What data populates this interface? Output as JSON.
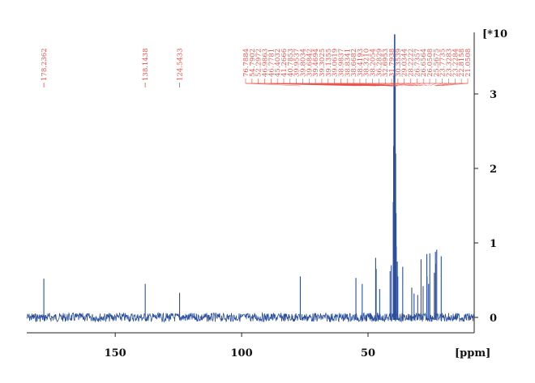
{
  "chart_data": {
    "type": "line",
    "x_unit_label": "[ppm]",
    "y_unit_label": "[*10",
    "x_ticks": [
      150,
      100,
      50
    ],
    "y_ticks": [
      0,
      1,
      2,
      3
    ],
    "x_range": [
      185.0,
      8.0
    ],
    "y_range": [
      -0.18,
      3.85
    ],
    "x_reversed": true,
    "grid": false,
    "colors": {
      "trace": "#2c4f9e",
      "labels": "#e8504a",
      "axis": "#222222"
    },
    "peak_labels_left": [
      {
        "text": "178.2362",
        "ppm": 178.2362
      },
      {
        "text": "138.1438",
        "ppm": 138.1438
      },
      {
        "text": "124.5433",
        "ppm": 124.5433
      }
    ],
    "peak_labels_cluster": [
      "76.7884",
      "54.7902",
      "52.2972",
      "46.9863",
      "46.7781",
      "45.4032",
      "41.2666",
      "40.7853",
      "39.9537",
      "39.8034",
      "39.6842",
      "39.4694",
      "39.3025",
      "39.1355",
      "39.0619",
      "38.9837",
      "38.8341",
      "38.6682",
      "38.4193",
      "38.3210",
      "38.2054",
      "36.2829",
      "32.6953",
      "31.7938",
      "30.3539",
      "29.0344",
      "28.2222",
      "26.7357",
      "26.6564",
      "26.0508",
      "25.5675",
      "23.7735",
      "23.3283",
      "23.2284",
      "22.8158",
      "21.0508"
    ],
    "peaks": [
      {
        "ppm": 178.24,
        "height": 0.52
      },
      {
        "ppm": 138.14,
        "height": 0.45
      },
      {
        "ppm": 124.54,
        "height": 0.33
      },
      {
        "ppm": 76.79,
        "height": 0.55
      },
      {
        "ppm": 54.79,
        "height": 0.53
      },
      {
        "ppm": 52.3,
        "height": 0.45
      },
      {
        "ppm": 46.99,
        "height": 0.8
      },
      {
        "ppm": 46.78,
        "height": 0.65
      },
      {
        "ppm": 45.4,
        "height": 0.38
      },
      {
        "ppm": 41.27,
        "height": 0.62
      },
      {
        "ppm": 40.79,
        "height": 0.7
      },
      {
        "ppm": 39.95,
        "height": 1.55
      },
      {
        "ppm": 39.8,
        "height": 2.3
      },
      {
        "ppm": 39.68,
        "height": 3.25
      },
      {
        "ppm": 39.47,
        "height": 3.8
      },
      {
        "ppm": 39.3,
        "height": 3.1
      },
      {
        "ppm": 39.14,
        "height": 2.2
      },
      {
        "ppm": 38.98,
        "height": 1.4
      },
      {
        "ppm": 38.83,
        "height": 0.95
      },
      {
        "ppm": 38.42,
        "height": 0.75
      },
      {
        "ppm": 38.21,
        "height": 0.55
      },
      {
        "ppm": 36.28,
        "height": 0.68
      },
      {
        "ppm": 32.7,
        "height": 0.4
      },
      {
        "ppm": 31.79,
        "height": 0.32
      },
      {
        "ppm": 30.35,
        "height": 0.3
      },
      {
        "ppm": 29.03,
        "height": 0.78
      },
      {
        "ppm": 28.22,
        "height": 0.42
      },
      {
        "ppm": 26.74,
        "height": 0.85
      },
      {
        "ppm": 26.66,
        "height": 0.55
      },
      {
        "ppm": 26.05,
        "height": 0.45
      },
      {
        "ppm": 25.57,
        "height": 0.86
      },
      {
        "ppm": 23.77,
        "height": 0.6
      },
      {
        "ppm": 23.33,
        "height": 0.88
      },
      {
        "ppm": 23.23,
        "height": 0.72
      },
      {
        "ppm": 22.82,
        "height": 0.91
      },
      {
        "ppm": 21.05,
        "height": 0.82
      }
    ]
  }
}
